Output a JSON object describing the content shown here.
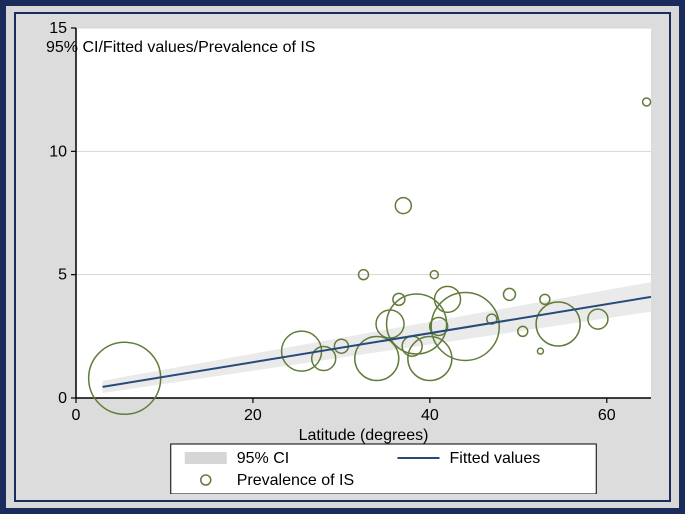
{
  "chart": {
    "type": "bubble-scatter-with-fit",
    "background_outer": "#d8d8d8",
    "background_inner": "#dcdcdc",
    "plot_background": "#ffffff",
    "outer_border_color": "#1a2b5c",
    "outer_border_width": 6,
    "inner_border_color": "#1a2b5c",
    "inner_border_width": 2,
    "axis_color": "#000000",
    "grid_color": "#d6d6d6",
    "title": "95% CI/Fitted values/Prevalence of IS",
    "title_fontsize": 16,
    "xlabel": "Latitude (degrees)",
    "ylabel": "",
    "label_fontsize": 16,
    "tick_fontsize": 16,
    "xlim": [
      0,
      65
    ],
    "ylim": [
      0,
      15
    ],
    "xticks": [
      0,
      20,
      40,
      60
    ],
    "yticks": [
      0,
      5,
      10,
      15
    ],
    "fit_line": {
      "x1": 3,
      "y1": 0.45,
      "x2": 65,
      "y2": 4.1,
      "color": "#264a7a",
      "width": 2
    },
    "ci_fill_color": "#d6d6d6",
    "bubble_stroke": "#617c3a",
    "bubble_fill": "none",
    "bubble_stroke_width": 1.5,
    "bubbles": [
      {
        "x": 5.5,
        "y": 0.8,
        "r": 36
      },
      {
        "x": 25.5,
        "y": 1.9,
        "r": 20
      },
      {
        "x": 28.0,
        "y": 1.6,
        "r": 12
      },
      {
        "x": 30.0,
        "y": 2.1,
        "r": 7
      },
      {
        "x": 32.5,
        "y": 5.0,
        "r": 5
      },
      {
        "x": 34.0,
        "y": 1.6,
        "r": 22
      },
      {
        "x": 35.5,
        "y": 3.0,
        "r": 14
      },
      {
        "x": 36.5,
        "y": 4.0,
        "r": 6
      },
      {
        "x": 37.0,
        "y": 7.8,
        "r": 8
      },
      {
        "x": 38.0,
        "y": 2.1,
        "r": 10
      },
      {
        "x": 38.5,
        "y": 3.0,
        "r": 30
      },
      {
        "x": 40.0,
        "y": 1.6,
        "r": 22
      },
      {
        "x": 40.5,
        "y": 5.0,
        "r": 4
      },
      {
        "x": 41.0,
        "y": 2.9,
        "r": 9
      },
      {
        "x": 42.0,
        "y": 4.0,
        "r": 13
      },
      {
        "x": 44.0,
        "y": 2.9,
        "r": 34
      },
      {
        "x": 47.0,
        "y": 3.2,
        "r": 5
      },
      {
        "x": 49.0,
        "y": 4.2,
        "r": 6
      },
      {
        "x": 50.5,
        "y": 2.7,
        "r": 5
      },
      {
        "x": 52.5,
        "y": 1.9,
        "r": 3
      },
      {
        "x": 53.0,
        "y": 4.0,
        "r": 5
      },
      {
        "x": 54.5,
        "y": 3.0,
        "r": 22
      },
      {
        "x": 59.0,
        "y": 3.2,
        "r": 10
      },
      {
        "x": 64.5,
        "y": 12.0,
        "r": 4
      }
    ],
    "legend": {
      "border_color": "#000000",
      "background": "#ffffff",
      "items": [
        {
          "type": "ci",
          "label": "95% CI"
        },
        {
          "type": "line",
          "label": "Fitted values"
        },
        {
          "type": "bubble",
          "label": "Prevalence of IS"
        }
      ]
    }
  }
}
